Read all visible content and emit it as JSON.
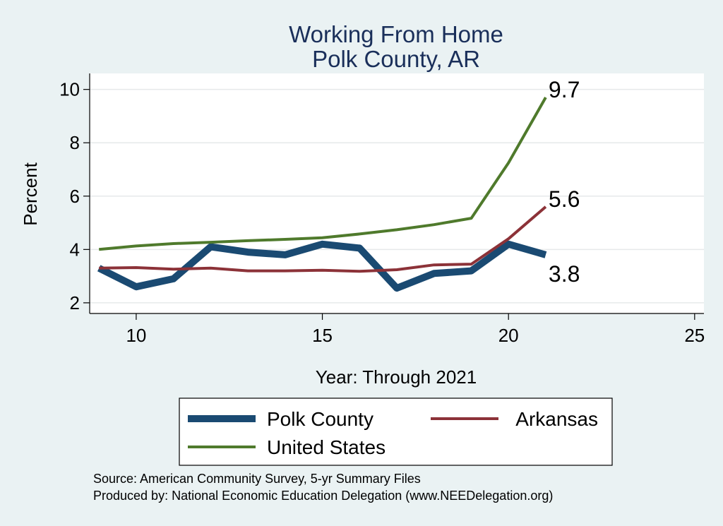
{
  "chart_data": {
    "type": "line",
    "title": "Working From Home",
    "subtitle": "Polk County, AR",
    "xlabel": "Year: Through 2021",
    "ylabel": "Percent",
    "xlim": [
      8.75,
      25.25
    ],
    "ylim": [
      1.6,
      10.6
    ],
    "xticks": [
      10,
      15,
      20,
      25
    ],
    "yticks": [
      2,
      4,
      6,
      8,
      10
    ],
    "grid": true,
    "legend_position": "bottom",
    "series": [
      {
        "name": "Polk County",
        "color": "#1a4a72",
        "width": 10,
        "x": [
          9,
          10,
          11,
          12,
          13,
          14,
          15,
          16,
          17,
          18,
          19,
          20,
          21
        ],
        "y": [
          3.3,
          2.6,
          2.9,
          4.1,
          3.9,
          3.8,
          4.2,
          4.05,
          2.55,
          3.1,
          3.2,
          4.2,
          3.8
        ],
        "end_label": "3.8"
      },
      {
        "name": "Arkansas",
        "color": "#8c3238",
        "width": 4,
        "x": [
          9,
          10,
          11,
          12,
          13,
          14,
          15,
          16,
          17,
          18,
          19,
          20,
          21
        ],
        "y": [
          3.3,
          3.32,
          3.26,
          3.3,
          3.2,
          3.2,
          3.22,
          3.18,
          3.24,
          3.42,
          3.45,
          4.4,
          5.6
        ],
        "end_label": "5.6"
      },
      {
        "name": "United States",
        "color": "#4f7a2c",
        "width": 4,
        "x": [
          9,
          10,
          11,
          12,
          13,
          14,
          15,
          16,
          17,
          18,
          19,
          20,
          21
        ],
        "y": [
          4.0,
          4.13,
          4.22,
          4.27,
          4.33,
          4.38,
          4.44,
          4.58,
          4.74,
          4.93,
          5.17,
          7.25,
          9.7
        ],
        "end_label": "9.7"
      }
    ]
  },
  "footer": {
    "source": "Source: American Community Survey, 5-yr Summary Files",
    "produced_by": "Produced by: National Economic Education Delegation (www.NEEDelegation.org)"
  }
}
